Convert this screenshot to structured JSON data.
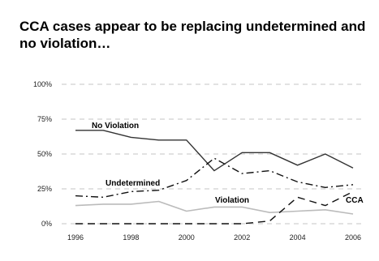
{
  "title": "CCA cases appear to be replacing undetermined and no violation…",
  "chart_data": {
    "type": "line",
    "title": "CCA cases appear to be replacing undetermined and no violation…",
    "xlabel": "",
    "ylabel": "",
    "x": [
      1996,
      1997,
      1998,
      1999,
      2000,
      2001,
      2002,
      2003,
      2004,
      2005,
      2006
    ],
    "x_ticks": [
      "1996",
      "1998",
      "2000",
      "2002",
      "2004",
      "2006"
    ],
    "y_ticks": [
      "0%",
      "25%",
      "50%",
      "75%",
      "100%"
    ],
    "ylim": [
      0,
      100
    ],
    "grid": "horizontal dashed",
    "legend": "none (direct labels)",
    "series": [
      {
        "name": "No Violation",
        "style": "solid",
        "color": "#333333",
        "values": [
          67,
          67,
          62,
          60,
          60,
          38,
          51,
          51,
          42,
          50,
          40
        ]
      },
      {
        "name": "Undetermined",
        "style": "dash-dot",
        "color": "#111111",
        "values": [
          20,
          19,
          23,
          24,
          31,
          47,
          36,
          38,
          30,
          26,
          28
        ]
      },
      {
        "name": "Violation",
        "style": "solid",
        "color": "#bbbbbb",
        "values": [
          13,
          14,
          14,
          16,
          9,
          12,
          12,
          8,
          9,
          10,
          7
        ]
      },
      {
        "name": "CCA",
        "style": "dashed",
        "color": "#111111",
        "values": [
          0,
          0,
          0,
          0,
          0,
          0,
          0,
          2,
          19,
          13,
          23
        ]
      }
    ]
  }
}
